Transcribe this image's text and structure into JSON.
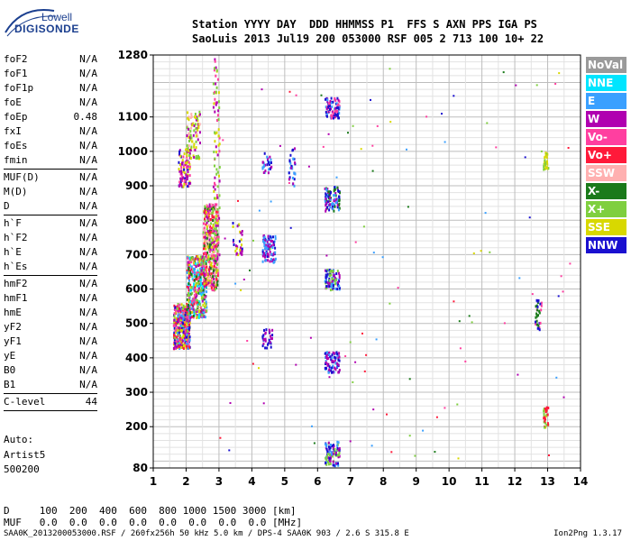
{
  "logo": {
    "line1": "Lowell",
    "line2": "DIGISONDE"
  },
  "header": {
    "row1": "Station YYYY DAY  DDD HHMMSS P1  FFS S AXN PPS IGA PS",
    "row2": "SaoLuis 2013 Jul19 200 053000 RSF 005 2 713 100 10+ 22"
  },
  "params": [
    {
      "label": "foF2",
      "value": "N/A"
    },
    {
      "label": "foF1",
      "value": "N/A"
    },
    {
      "label": "foF1p",
      "value": "N/A"
    },
    {
      "label": "foE",
      "value": "N/A"
    },
    {
      "label": "foEp",
      "value": "0.48"
    },
    {
      "label": "fxI",
      "value": "N/A"
    },
    {
      "label": "foEs",
      "value": "N/A"
    },
    {
      "label": "fmin",
      "value": "N/A"
    },
    {
      "sep": true
    },
    {
      "label": "MUF(D)",
      "value": "N/A"
    },
    {
      "label": "M(D)",
      "value": "N/A"
    },
    {
      "label": "D",
      "value": "N/A"
    },
    {
      "sep": true
    },
    {
      "label": "h`F",
      "value": "N/A"
    },
    {
      "label": "h`F2",
      "value": "N/A"
    },
    {
      "label": "h`E",
      "value": "N/A"
    },
    {
      "label": "h`Es",
      "value": "N/A"
    },
    {
      "sep": true
    },
    {
      "label": "hmF2",
      "value": "N/A"
    },
    {
      "label": "hmF1",
      "value": "N/A"
    },
    {
      "label": "hmE",
      "value": "N/A"
    },
    {
      "label": "yF2",
      "value": "N/A"
    },
    {
      "label": "yF1",
      "value": "N/A"
    },
    {
      "label": "yE",
      "value": "N/A"
    },
    {
      "label": "B0",
      "value": "N/A"
    },
    {
      "label": "B1",
      "value": "N/A"
    },
    {
      "sep": true
    },
    {
      "label": "C-level",
      "value": "44"
    },
    {
      "sep": true
    }
  ],
  "auto": {
    "line1": "Auto:",
    "line2": "Artist5",
    "line3": "500200"
  },
  "legend": [
    {
      "label": "NoVal",
      "color": "#9a9a9a"
    },
    {
      "label": "NNE",
      "color": "#00e5ff"
    },
    {
      "label": "E",
      "color": "#3aa0ff"
    },
    {
      "label": "W",
      "color": "#b000b0"
    },
    {
      "label": "Vo-",
      "color": "#ff3fa0"
    },
    {
      "label": "Vo+",
      "color": "#ff1a3a"
    },
    {
      "label": "SSW",
      "color": "#ffb0b0"
    },
    {
      "label": "X-",
      "color": "#1a7a1a"
    },
    {
      "label": "X+",
      "color": "#7fcf3f"
    },
    {
      "label": "SSE",
      "color": "#d8d800"
    },
    {
      "label": "NNW",
      "color": "#1a10d0"
    }
  ],
  "bottom": {
    "d_row": "D     100  200  400  600  800 1000 1500 3000 [km]",
    "muf_row": "MUF   0.0  0.0  0.0  0.0  0.0  0.0  0.0  0.0 [MHz]"
  },
  "footer": {
    "left": "SAA0K_2013200053000.RSF / 260fx256h 50 kHz 5.0 km / DPS-4 SAA0K 903 / 2.6 S 315.8 E",
    "right": "Ion2Png 1.3.17"
  },
  "chart_data": {
    "type": "scatter",
    "title": "",
    "xlabel": "",
    "ylabel": "",
    "xlim": [
      1,
      14
    ],
    "ylim": [
      80,
      1280
    ],
    "x_ticks": [
      1,
      2,
      3,
      4,
      5,
      6,
      7,
      8,
      9,
      10,
      11,
      12,
      13,
      14
    ],
    "y_ticks": [
      80,
      200,
      300,
      400,
      500,
      600,
      700,
      800,
      900,
      1000,
      1100,
      1280
    ],
    "grid": true,
    "clusters": [
      {
        "x": [
          1.6,
          2.1
        ],
        "y": [
          430,
          560
        ],
        "colors": [
          "W",
          "Vo-",
          "NNW",
          "Vo+",
          "E",
          "X+",
          "SSE"
        ],
        "density": "high"
      },
      {
        "x": [
          2.0,
          2.6
        ],
        "y": [
          520,
          700
        ],
        "colors": [
          "W",
          "Vo-",
          "Vo+",
          "X-",
          "X+",
          "SSE",
          "E",
          "NNE"
        ],
        "density": "high"
      },
      {
        "x": [
          2.5,
          2.95
        ],
        "y": [
          600,
          850
        ],
        "colors": [
          "W",
          "Vo-",
          "Vo+",
          "X-",
          "X+",
          "SSE",
          "SSW"
        ],
        "density": "high"
      },
      {
        "x": [
          1.75,
          2.1
        ],
        "y": [
          900,
          1010
        ],
        "colors": [
          "W",
          "NNW",
          "Vo-",
          "SSE"
        ],
        "density": "medium"
      },
      {
        "x": [
          2.0,
          2.4
        ],
        "y": [
          980,
          1120
        ],
        "colors": [
          "SSE",
          "X+",
          "SSW",
          "W"
        ],
        "density": "medium"
      },
      {
        "x": [
          2.8,
          3.0
        ],
        "y": [
          700,
          1280
        ],
        "colors": [
          "SSE",
          "Vo-",
          "X+",
          "W"
        ],
        "density": "medium"
      },
      {
        "x": [
          3.4,
          3.7
        ],
        "y": [
          700,
          800
        ],
        "colors": [
          "SSE",
          "NNW",
          "W"
        ],
        "density": "low"
      },
      {
        "x": [
          4.3,
          4.7
        ],
        "y": [
          680,
          760
        ],
        "colors": [
          "NNW",
          "W",
          "E"
        ],
        "density": "medium"
      },
      {
        "x": [
          4.3,
          4.6
        ],
        "y": [
          940,
          1000
        ],
        "colors": [
          "NNW",
          "E",
          "W"
        ],
        "density": "low"
      },
      {
        "x": [
          4.3,
          4.6
        ],
        "y": [
          430,
          490
        ],
        "colors": [
          "NNW",
          "W"
        ],
        "density": "low"
      },
      {
        "x": [
          5.1,
          5.3
        ],
        "y": [
          900,
          1020
        ],
        "colors": [
          "NNW",
          "W",
          "E"
        ],
        "density": "low"
      },
      {
        "x": [
          6.2,
          6.65
        ],
        "y": [
          830,
          900
        ],
        "colors": [
          "NNW",
          "E",
          "W",
          "X-"
        ],
        "density": "medium"
      },
      {
        "x": [
          6.2,
          6.65
        ],
        "y": [
          600,
          660
        ],
        "colors": [
          "NNW",
          "E",
          "W",
          "X+"
        ],
        "density": "medium"
      },
      {
        "x": [
          6.2,
          6.65
        ],
        "y": [
          360,
          420
        ],
        "colors": [
          "NNW",
          "E",
          "W"
        ],
        "density": "medium"
      },
      {
        "x": [
          6.2,
          6.65
        ],
        "y": [
          1100,
          1160
        ],
        "colors": [
          "NNW",
          "E",
          "W",
          "Vo-"
        ],
        "density": "medium"
      },
      {
        "x": [
          6.2,
          6.65
        ],
        "y": [
          90,
          160
        ],
        "colors": [
          "NNW",
          "X+",
          "E",
          "W"
        ],
        "density": "medium"
      },
      {
        "x": [
          12.6,
          12.8
        ],
        "y": [
          480,
          580
        ],
        "colors": [
          "X-",
          "NNW",
          "Vo-"
        ],
        "density": "low"
      },
      {
        "x": [
          12.85,
          13.0
        ],
        "y": [
          200,
          260
        ],
        "colors": [
          "SSE",
          "X+",
          "Vo+"
        ],
        "density": "low"
      },
      {
        "x": [
          12.85,
          13.0
        ],
        "y": [
          950,
          1000
        ],
        "colors": [
          "SSE",
          "X+"
        ],
        "density": "low"
      }
    ]
  }
}
